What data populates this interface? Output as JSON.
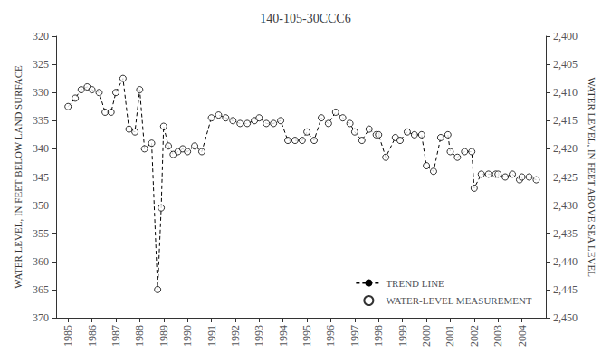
{
  "chart_data": {
    "type": "line",
    "title": "140-105-30CCC6",
    "ylabel": "WATER LEVEL, IN FEET BELOW LAND SURFACE",
    "y2label": "WATER LEVEL, IN FEET ABOVE SEA LEVEL",
    "x": [
      1985.0,
      1985.3,
      1985.55,
      1985.8,
      1986.0,
      1986.3,
      1986.55,
      1986.8,
      1987.0,
      1987.3,
      1987.55,
      1987.8,
      1988.0,
      1988.2,
      1988.5,
      1988.75,
      1988.9,
      1989.0,
      1989.2,
      1989.4,
      1989.6,
      1989.8,
      1990.0,
      1990.3,
      1990.6,
      1991.0,
      1991.3,
      1991.6,
      1991.9,
      1992.2,
      1992.5,
      1992.8,
      1993.0,
      1993.3,
      1993.6,
      1993.9,
      1994.2,
      1994.5,
      1994.8,
      1995.0,
      1995.3,
      1995.6,
      1995.9,
      1996.2,
      1996.5,
      1996.8,
      1997.0,
      1997.3,
      1997.6,
      1997.9,
      1998.0,
      1998.3,
      1998.7,
      1998.9,
      1999.2,
      1999.5,
      1999.8,
      2000.0,
      2000.3,
      2000.6,
      2000.9,
      2001.0,
      2001.3,
      2001.6,
      2001.9,
      2002.0,
      2002.3,
      2002.6,
      2002.9,
      2003.0,
      2003.3,
      2003.6,
      2003.9,
      2004.0,
      2004.3,
      2004.6
    ],
    "series": [
      {
        "name": "TREND LINE",
        "type": "line",
        "line_style": "dashed",
        "color": "black",
        "values": [
          332.5,
          331.0,
          329.5,
          329.0,
          329.5,
          330.0,
          333.5,
          333.5,
          330.0,
          327.5,
          336.5,
          337.0,
          329.5,
          340.0,
          339.0,
          365.0,
          350.5,
          336.0,
          339.5,
          341.0,
          340.5,
          340.0,
          340.5,
          339.5,
          340.5,
          334.5,
          334.0,
          334.5,
          335.0,
          335.5,
          335.5,
          335.0,
          334.5,
          335.5,
          335.5,
          335.0,
          338.5,
          338.5,
          338.5,
          337.0,
          338.5,
          334.5,
          335.5,
          333.5,
          334.5,
          335.5,
          337.0,
          338.5,
          336.5,
          337.5,
          337.5,
          341.5,
          338.0,
          338.5,
          337.0,
          337.5,
          337.5,
          343.0,
          344.0,
          338.0,
          337.5,
          340.5,
          341.5,
          340.5,
          340.5,
          347.0,
          344.5,
          344.5,
          344.5,
          344.5,
          345.0,
          344.5,
          345.5,
          345.0,
          345.0,
          345.5
        ]
      },
      {
        "name": "WATER-LEVEL MEASUREMENT",
        "type": "scatter",
        "marker": "circle",
        "color": "black",
        "values": [
          332.5,
          331.0,
          329.5,
          329.0,
          329.5,
          330.0,
          333.5,
          333.5,
          330.0,
          327.5,
          336.5,
          337.0,
          329.5,
          340.0,
          339.0,
          365.0,
          350.5,
          336.0,
          339.5,
          341.0,
          340.5,
          340.0,
          340.5,
          339.5,
          340.5,
          334.5,
          334.0,
          334.5,
          335.0,
          335.5,
          335.5,
          335.0,
          334.5,
          335.5,
          335.5,
          335.0,
          338.5,
          338.5,
          338.5,
          337.0,
          338.5,
          334.5,
          335.5,
          333.5,
          334.5,
          335.5,
          337.0,
          338.5,
          336.5,
          337.5,
          337.5,
          341.5,
          338.0,
          338.5,
          337.0,
          337.5,
          337.5,
          343.0,
          344.0,
          338.0,
          337.5,
          340.5,
          341.5,
          340.5,
          340.5,
          347.0,
          344.5,
          344.5,
          344.5,
          344.5,
          345.0,
          344.5,
          345.5,
          345.0,
          345.0,
          345.5
        ]
      }
    ],
    "xlim": [
      1984.5,
      2005.0
    ],
    "xticks": [
      1985,
      1986,
      1987,
      1988,
      1989,
      1990,
      1991,
      1992,
      1993,
      1994,
      1995,
      1996,
      1997,
      1998,
      1999,
      2000,
      2001,
      2002,
      2003,
      2004
    ],
    "ylim": [
      370,
      320
    ],
    "yticks": [
      320,
      325,
      330,
      335,
      340,
      345,
      350,
      355,
      360,
      365,
      370
    ],
    "y2lim": [
      2450,
      2400
    ],
    "y2ticks": [
      {
        "value": 2400,
        "label": "2,400"
      },
      {
        "value": 2405,
        "label": "2,405"
      },
      {
        "value": 2410,
        "label": "2,410"
      },
      {
        "value": 2415,
        "label": "2,415"
      },
      {
        "value": 2420,
        "label": "2,420"
      },
      {
        "value": 2425,
        "label": "2,425"
      },
      {
        "value": 2430,
        "label": "2,430"
      },
      {
        "value": 2435,
        "label": "2,435"
      },
      {
        "value": 2440,
        "label": "2,440"
      },
      {
        "value": 2445,
        "label": "2,445"
      },
      {
        "value": 2450,
        "label": "2,450"
      }
    ],
    "grid": false,
    "legend": "lower right"
  }
}
